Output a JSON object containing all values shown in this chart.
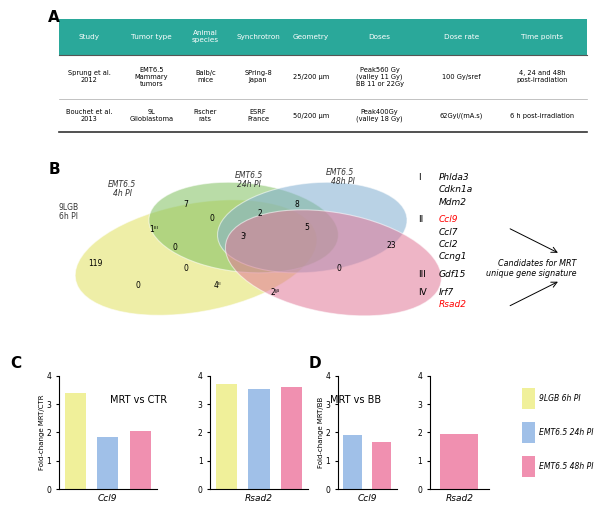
{
  "table_header_color": "#2aa89a",
  "table_header_text_color": "#ffffff",
  "table_cols": [
    "Study",
    "Tumor type",
    "Animal\nspecies",
    "Synchrotron",
    "Geometry",
    "Doses",
    "Dose rate",
    "Time points"
  ],
  "table_rows": [
    [
      "Sprung et al.\n2012",
      "EMT6.5\nMammary\ntumors",
      "Balb/c\nmice",
      "SPring-8\nJapan",
      "25/200 μm",
      "Peak560 Gy\n(valley 11 Gy)\nBB 11 or 22Gy",
      "100 Gy/sref",
      "4, 24 and 48h\npost-irradiation"
    ],
    [
      "Bouchet et al.\n2013",
      "9L\nGlioblastoma",
      "Fischer\nrats",
      "ESRF\nFrance",
      "50/200 μm",
      "Peak400Gy\n(valley 18 Gy)",
      "62Gyi/(mA.s)",
      "6 h post-irradiation"
    ]
  ],
  "bar_colors": {
    "yellow": "#f0f09a",
    "blue": "#a0c0e8",
    "pink": "#f090b0"
  },
  "C_title": "MRT vs CTR",
  "D_title": "MRT vs BB",
  "C_ylabel": "Fold-change MRT/CTR",
  "D_ylabel": "Fold-change MRT/BB",
  "C_ccl9": [
    3.4,
    1.85,
    2.05
  ],
  "C_rsad2": [
    3.7,
    3.55,
    3.6
  ],
  "D_ccl9": [
    1.9,
    1.65
  ],
  "D_rsad2": [
    1.95
  ],
  "legend_labels": [
    "9LGB 6h PI",
    "EMT6.5 24h PI",
    "EMT6.5 48h PI"
  ],
  "ylim_bars": [
    0,
    4
  ],
  "venn_yellow": "#e0e060",
  "venn_green": "#80c060",
  "venn_blue": "#80aed0",
  "venn_pink": "#e07898"
}
